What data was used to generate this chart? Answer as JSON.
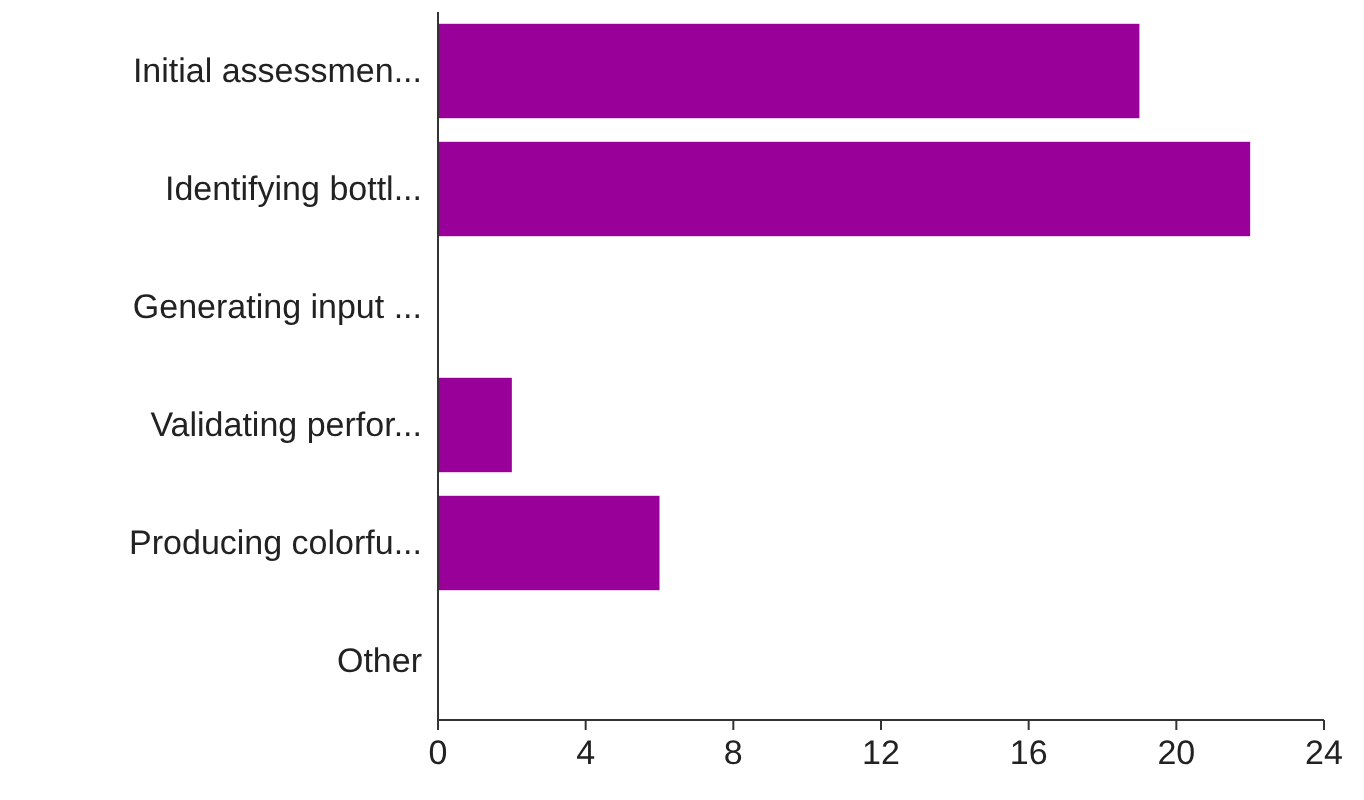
{
  "chart_data": {
    "type": "bar",
    "orientation": "horizontal",
    "categories": [
      "Initial assessmen...",
      "Identifying bottl...",
      "Generating input ...",
      "Validating perfor...",
      "Producing colorfu...",
      "Other"
    ],
    "values": [
      19,
      22,
      0,
      2,
      6,
      0
    ],
    "color": "#990099",
    "xlim": [
      0,
      24
    ],
    "xticks": [
      0,
      4,
      8,
      12,
      16,
      20,
      24
    ],
    "grid": false
  }
}
